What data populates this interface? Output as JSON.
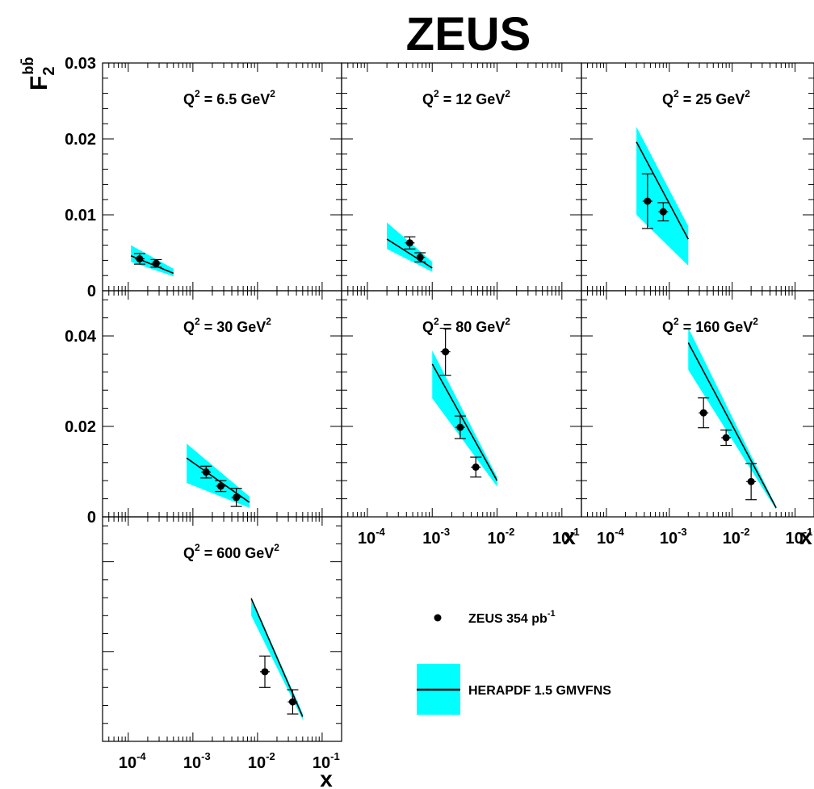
{
  "title": "ZEUS",
  "y_axis_title": {
    "main": "F",
    "sub": "2",
    "sup": "bb̄"
  },
  "x_axis_title": "x",
  "x_ticks": [
    {
      "base": "10",
      "exp": "-4",
      "value": 0.0001
    },
    {
      "base": "10",
      "exp": "-3",
      "value": 0.001
    },
    {
      "base": "10",
      "exp": "-2",
      "value": 0.01
    },
    {
      "base": "10",
      "exp": "-1",
      "value": 0.1
    }
  ],
  "legend": {
    "data_label": "ZEUS 354 pb",
    "data_label_sup": "-1",
    "theory_label": "HERAPDF 1.5 GMVFNS"
  },
  "colors": {
    "band": "#00ffff",
    "ink": "#000000",
    "background": "#ffffff"
  },
  "chart_data": [
    {
      "type": "scatter",
      "panel": "Q2=6.5",
      "label": {
        "prefix": "Q",
        "sup": "2",
        "text": " = 6.5 GeV",
        "unit_sup": "2"
      },
      "xscale": "log",
      "xlim": [
        4e-05,
        0.2
      ],
      "ylim": [
        0,
        0.03
      ],
      "yticks": [
        "0",
        "0.01",
        "0.02",
        "0.03"
      ],
      "points": [
        {
          "x": 0.00015,
          "y": 0.0042,
          "err": 0.0007
        },
        {
          "x": 0.00027,
          "y": 0.0036,
          "err": 0.0005
        }
      ],
      "curve": [
        [
          0.00011,
          0.0046
        ],
        [
          0.0005,
          0.0023
        ]
      ],
      "band": {
        "x": [
          0.00011,
          0.0005
        ],
        "lo": [
          0.0038,
          0.0019
        ],
        "hi": [
          0.006,
          0.0029
        ]
      }
    },
    {
      "type": "scatter",
      "panel": "Q2=12",
      "label": {
        "prefix": "Q",
        "sup": "2",
        "text": " = 12 GeV",
        "unit_sup": "2"
      },
      "xscale": "log",
      "xlim": [
        4e-05,
        0.2
      ],
      "ylim": [
        0,
        0.03
      ],
      "points": [
        {
          "x": 0.00045,
          "y": 0.0063,
          "err": 0.0008
        },
        {
          "x": 0.00065,
          "y": 0.0044,
          "err": 0.0006
        }
      ],
      "curve": [
        [
          0.0002,
          0.0068
        ],
        [
          0.001,
          0.003
        ]
      ],
      "band": {
        "x": [
          0.0002,
          0.001
        ],
        "lo": [
          0.0055,
          0.0025
        ],
        "hi": [
          0.009,
          0.0038
        ]
      }
    },
    {
      "type": "scatter",
      "panel": "Q2=25",
      "label": {
        "prefix": "Q",
        "sup": "2",
        "text": " = 25 GeV",
        "unit_sup": "2"
      },
      "xscale": "log",
      "xlim": [
        4e-05,
        0.2
      ],
      "ylim": [
        0,
        0.03
      ],
      "points": [
        {
          "x": 0.00045,
          "y": 0.0118,
          "err": 0.0036
        },
        {
          "x": 0.0008,
          "y": 0.0104,
          "err": 0.0012
        }
      ],
      "curve": [
        [
          0.0003,
          0.0196
        ],
        [
          0.002,
          0.0068
        ]
      ],
      "band": {
        "x": [
          0.0003,
          0.002
        ],
        "lo": [
          0.01,
          0.0033
        ],
        "hi": [
          0.0216,
          0.0085
        ]
      }
    },
    {
      "type": "scatter",
      "panel": "Q2=30",
      "label": {
        "prefix": "Q",
        "sup": "2",
        "text": " = 30 GeV",
        "unit_sup": "2"
      },
      "xscale": "log",
      "xlim": [
        4e-05,
        0.2
      ],
      "ylim": [
        0,
        0.05
      ],
      "yticks": [
        "0",
        "0.02",
        "0.04"
      ],
      "points": [
        {
          "x": 0.0016,
          "y": 0.0099,
          "err": 0.0013
        },
        {
          "x": 0.0027,
          "y": 0.0068,
          "err": 0.0012
        },
        {
          "x": 0.0047,
          "y": 0.0043,
          "err": 0.002
        }
      ],
      "curve": [
        [
          0.0008,
          0.013
        ],
        [
          0.0075,
          0.0032
        ]
      ],
      "band": {
        "x": [
          0.0008,
          0.0075
        ],
        "lo": [
          0.0075,
          0.002
        ],
        "hi": [
          0.0162,
          0.0045
        ]
      }
    },
    {
      "type": "scatter",
      "panel": "Q2=80",
      "label": {
        "prefix": "Q",
        "sup": "2",
        "text": " = 80 GeV",
        "unit_sup": "2"
      },
      "xscale": "log",
      "xlim": [
        4e-05,
        0.2
      ],
      "ylim": [
        0,
        0.05
      ],
      "points": [
        {
          "x": 0.0016,
          "y": 0.0365,
          "err": 0.0052
        },
        {
          "x": 0.0027,
          "y": 0.0198,
          "err": 0.0025
        },
        {
          "x": 0.0047,
          "y": 0.011,
          "err": 0.0022
        }
      ],
      "curve": [
        [
          0.001,
          0.0338
        ],
        [
          0.01,
          0.008
        ]
      ],
      "band": {
        "x": [
          0.001,
          0.01
        ],
        "lo": [
          0.0262,
          0.0067
        ],
        "hi": [
          0.0368,
          0.0088
        ]
      }
    },
    {
      "type": "scatter",
      "panel": "Q2=160",
      "label": {
        "prefix": "Q",
        "sup": "2",
        "text": " = 160 GeV",
        "unit_sup": "2"
      },
      "xscale": "log",
      "xlim": [
        4e-05,
        0.2
      ],
      "ylim": [
        0,
        0.05
      ],
      "points": [
        {
          "x": 0.0035,
          "y": 0.023,
          "err": 0.0033
        },
        {
          "x": 0.008,
          "y": 0.0175,
          "err": 0.0017
        },
        {
          "x": 0.02,
          "y": 0.0078,
          "err": 0.004
        }
      ],
      "curve": [
        [
          0.002,
          0.0385
        ],
        [
          0.05,
          0.002
        ]
      ],
      "band": {
        "x": [
          0.002,
          0.05
        ],
        "lo": [
          0.0325,
          0.0016
        ],
        "hi": [
          0.0418,
          0.0023
        ]
      }
    },
    {
      "type": "scatter",
      "panel": "Q2=600",
      "label": {
        "prefix": "Q",
        "sup": "2",
        "text": " = 600 GeV",
        "unit_sup": "2"
      },
      "xscale": "log",
      "xlim": [
        4e-05,
        0.2
      ],
      "ylim": [
        0,
        0.05
      ],
      "points": [
        {
          "x": 0.013,
          "y": 0.0155,
          "err": 0.0035
        },
        {
          "x": 0.035,
          "y": 0.0088,
          "err": 0.0027
        }
      ],
      "curve": [
        [
          0.008,
          0.0318
        ],
        [
          0.05,
          0.0055
        ]
      ],
      "band": {
        "x": [
          0.008,
          0.05
        ],
        "lo": [
          0.028,
          0.0048
        ],
        "hi": [
          0.0322,
          0.0062
        ]
      }
    }
  ]
}
